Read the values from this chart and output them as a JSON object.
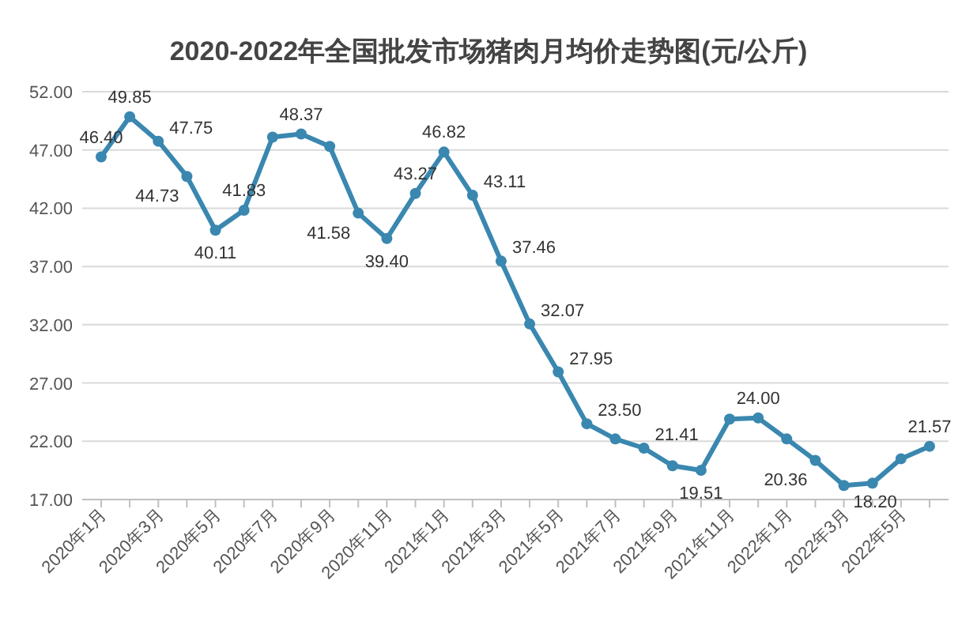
{
  "chart_data": {
    "type": "line",
    "title": "2020-2022年全国批发市场猪肉月均价走势图(元/公斤)",
    "categories": [
      "2020年1月",
      null,
      "2020年3月",
      null,
      "2020年5月",
      null,
      "2020年7月",
      null,
      "2020年9月",
      null,
      "2020年11月",
      null,
      "2021年1月",
      null,
      "2021年3月",
      null,
      "2021年5月",
      null,
      "2021年7月",
      null,
      "2021年9月",
      null,
      "2021年11月",
      null,
      "2022年1月",
      null,
      "2022年3月",
      null,
      "2022年5月",
      null
    ],
    "series": [
      {
        "color": "#3a87b0",
        "values": [
          46.4,
          49.85,
          47.75,
          44.73,
          40.11,
          41.83,
          48.1,
          48.37,
          47.3,
          41.58,
          39.4,
          43.27,
          46.82,
          43.11,
          37.46,
          32.07,
          27.95,
          23.5,
          22.2,
          21.41,
          19.9,
          19.51,
          23.9,
          24.0,
          22.2,
          20.36,
          18.2,
          18.4,
          20.5,
          21.57
        ],
        "value_labels": [
          "46.40",
          "49.85",
          "47.75",
          "44.73",
          "40.11",
          "41.83",
          null,
          "48.37",
          null,
          "41.58",
          "39.40",
          "43.27",
          "46.82",
          "43.11",
          "37.46",
          "32.07",
          "27.95",
          "23.50",
          null,
          "21.41",
          null,
          "19.51",
          null,
          "24.00",
          null,
          "20.36",
          "18.20",
          null,
          null,
          "21.57"
        ]
      }
    ],
    "ylim": [
      17,
      52
    ],
    "yticks": [
      {
        "value": 17,
        "label": "17.00"
      },
      {
        "value": 22,
        "label": "22.00"
      },
      {
        "value": 27,
        "label": "27.00"
      },
      {
        "value": 32,
        "label": "32.00"
      },
      {
        "value": 37,
        "label": "37.00"
      },
      {
        "value": 42,
        "label": "42.00"
      },
      {
        "value": 47,
        "label": "47.00"
      },
      {
        "value": 52,
        "label": "52.00"
      }
    ],
    "grid": "y",
    "marker": "circle",
    "line_style": "solid"
  }
}
